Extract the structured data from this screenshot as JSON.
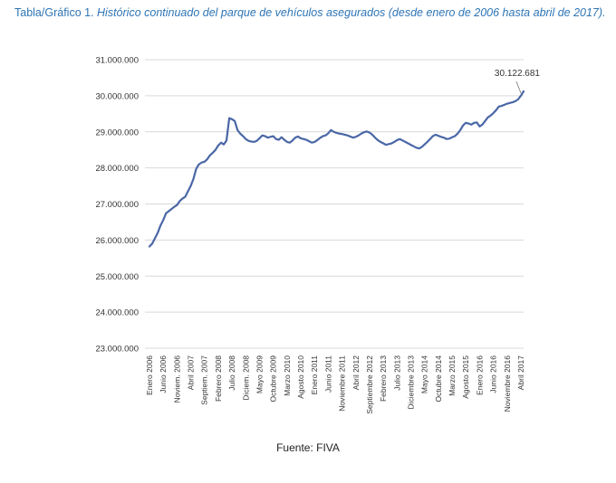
{
  "title": {
    "lead": "Tabla/Gráfico 1.",
    "text": "Histórico continuado del parque de vehículos asegurados (desde enero de 2006 hasta abril de 2017)."
  },
  "source": "Fuente: FIVA",
  "colors": {
    "title": "#2e75b6",
    "line": "#4a67a6",
    "grid": "#d9d9d9"
  },
  "chart_data": {
    "type": "line",
    "title": "",
    "xlabel": "",
    "ylabel": "",
    "ylim": [
      23000000,
      31000000
    ],
    "yticks": [
      "23.000.000",
      "24.000.000",
      "25.000.000",
      "26.000.000",
      "27.000.000",
      "28.000.000",
      "29.000.000",
      "30.000.000",
      "31.000.000"
    ],
    "xtick_labels": [
      {
        "month": 0,
        "label": "Enero 2006"
      },
      {
        "month": 5,
        "label": "Junio 2006"
      },
      {
        "month": 10,
        "label": "Noviem. 2006"
      },
      {
        "month": 15,
        "label": "Abril 2007"
      },
      {
        "month": 20,
        "label": "Septiem. 2007"
      },
      {
        "month": 25,
        "label": "Febrero 2008"
      },
      {
        "month": 30,
        "label": "Julio 2008"
      },
      {
        "month": 35,
        "label": "Diciem. 2008"
      },
      {
        "month": 40,
        "label": "Mayo 2009"
      },
      {
        "month": 45,
        "label": "Octubre 2009"
      },
      {
        "month": 50,
        "label": "Marzo 2010"
      },
      {
        "month": 55,
        "label": "Agosto 2010"
      },
      {
        "month": 60,
        "label": "Enero 2011"
      },
      {
        "month": 65,
        "label": "Junio 2011"
      },
      {
        "month": 70,
        "label": "Noviembre 2011"
      },
      {
        "month": 75,
        "label": "Abril 2012"
      },
      {
        "month": 80,
        "label": "Septiembre 2012"
      },
      {
        "month": 85,
        "label": "Febrero 2013"
      },
      {
        "month": 90,
        "label": "Julio 2013"
      },
      {
        "month": 95,
        "label": "Diciembre 2013"
      },
      {
        "month": 100,
        "label": "Mayo 2014"
      },
      {
        "month": 105,
        "label": "Octubre 2014"
      },
      {
        "month": 110,
        "label": "Marzo 2015"
      },
      {
        "month": 115,
        "label": "Agosto 2015"
      },
      {
        "month": 120,
        "label": "Enero 2016"
      },
      {
        "month": 125,
        "label": "Junio 2016"
      },
      {
        "month": 130,
        "label": "Noviembre 2016"
      },
      {
        "month": 135,
        "label": "Abril 2017"
      }
    ],
    "annotation": {
      "month": 135,
      "label": "30.122.681"
    },
    "series": [
      {
        "name": "",
        "values": [
          25820000,
          25900000,
          26050000,
          26200000,
          26400000,
          26550000,
          26740000,
          26800000,
          26860000,
          26920000,
          26970000,
          27080000,
          27150000,
          27200000,
          27350000,
          27500000,
          27700000,
          27980000,
          28100000,
          28150000,
          28170000,
          28240000,
          28350000,
          28420000,
          28500000,
          28620000,
          28700000,
          28650000,
          28760000,
          29380000,
          29350000,
          29300000,
          29050000,
          28950000,
          28880000,
          28800000,
          28750000,
          28730000,
          28720000,
          28750000,
          28820000,
          28900000,
          28880000,
          28840000,
          28860000,
          28880000,
          28800000,
          28780000,
          28850000,
          28780000,
          28720000,
          28700000,
          28760000,
          28840000,
          28870000,
          28820000,
          28800000,
          28780000,
          28740000,
          28700000,
          28720000,
          28770000,
          28830000,
          28880000,
          28900000,
          28960000,
          29050000,
          29000000,
          28970000,
          28950000,
          28940000,
          28920000,
          28900000,
          28870000,
          28840000,
          28860000,
          28900000,
          28950000,
          28990000,
          29010000,
          28980000,
          28920000,
          28840000,
          28770000,
          28720000,
          28680000,
          28640000,
          28660000,
          28680000,
          28720000,
          28770000,
          28800000,
          28760000,
          28720000,
          28680000,
          28640000,
          28600000,
          28560000,
          28540000,
          28580000,
          28650000,
          28720000,
          28800000,
          28880000,
          28920000,
          28890000,
          28860000,
          28840000,
          28800000,
          28810000,
          28850000,
          28880000,
          28950000,
          29050000,
          29180000,
          29250000,
          29230000,
          29200000,
          29250000,
          29260000,
          29150000,
          29200000,
          29300000,
          29400000,
          29450000,
          29520000,
          29600000,
          29700000,
          29720000,
          29750000,
          29780000,
          29800000,
          29820000,
          29850000,
          29900000,
          30000000,
          30122681
        ]
      }
    ]
  }
}
